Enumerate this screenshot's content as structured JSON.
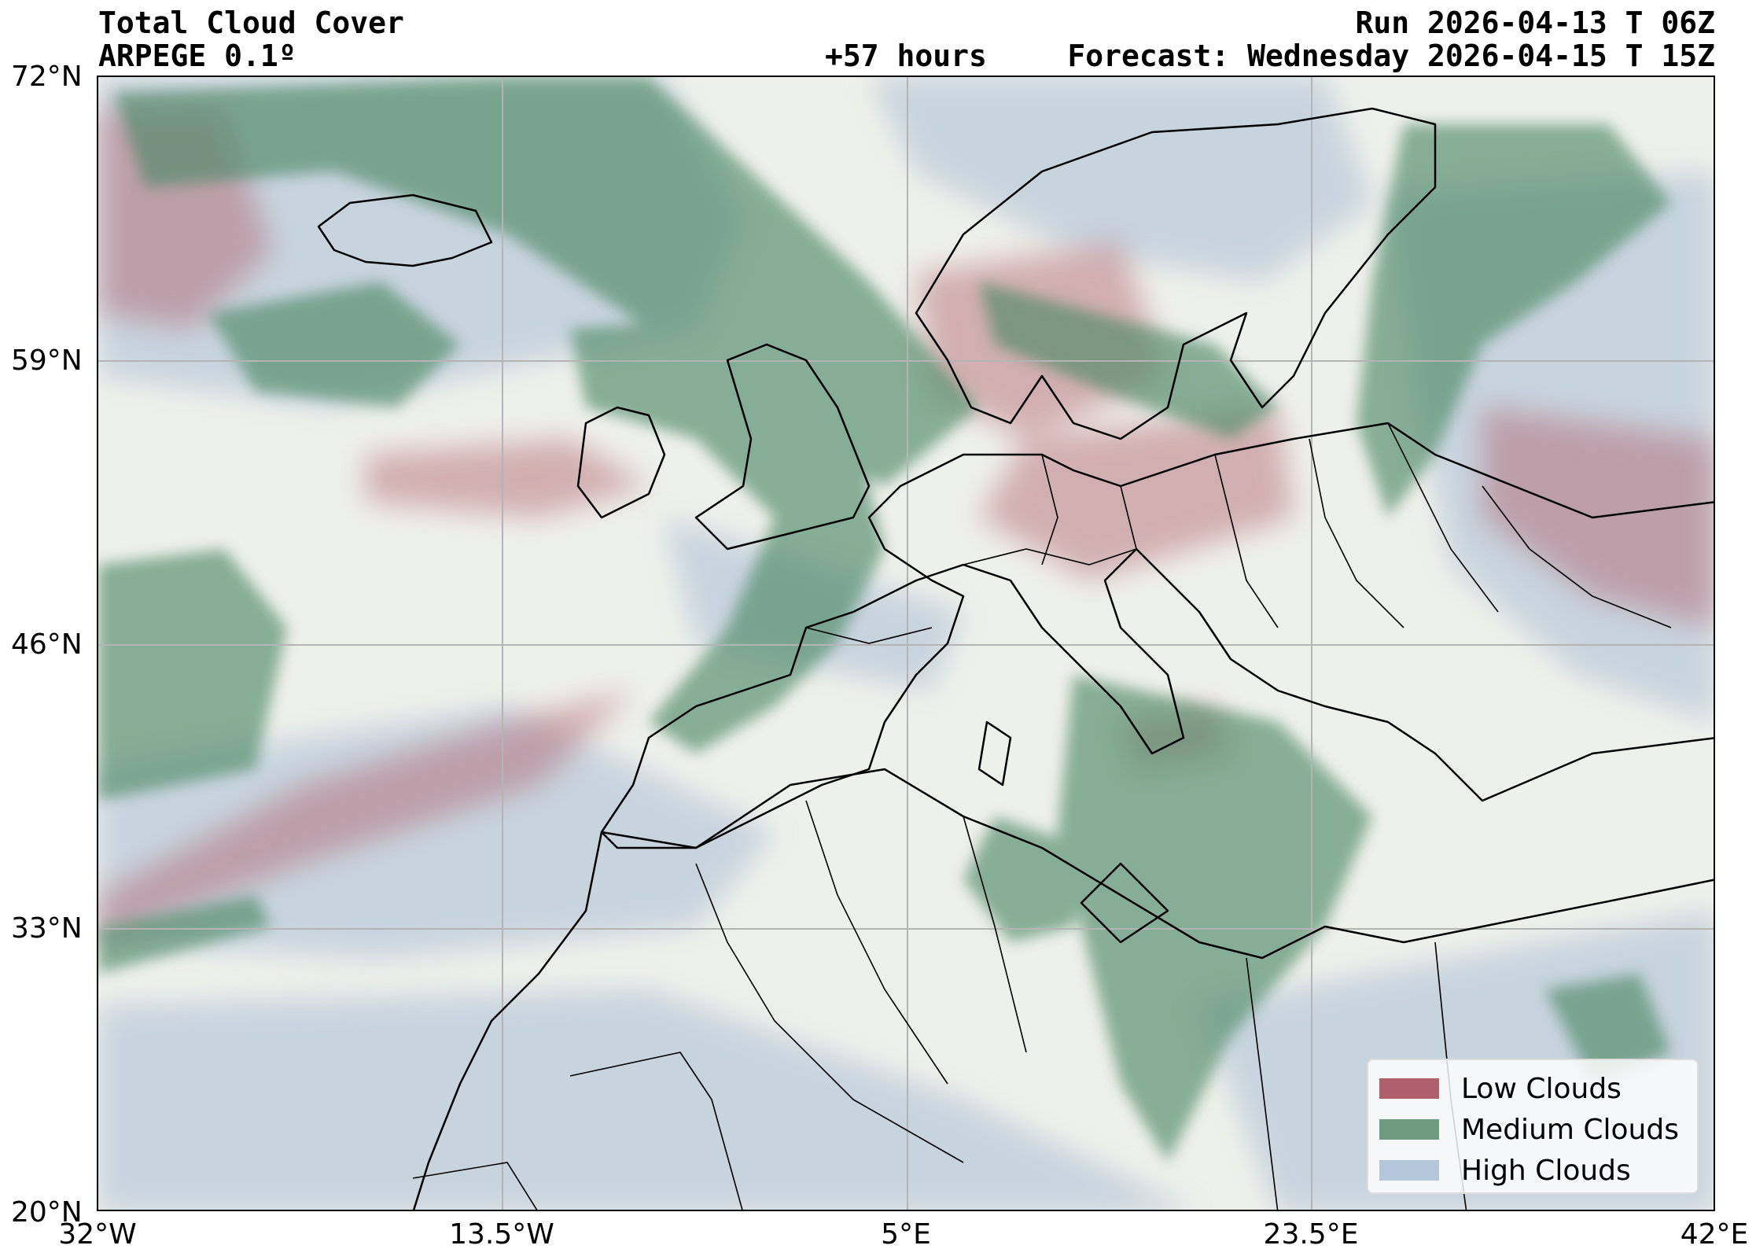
{
  "header": {
    "title": "Total Cloud Cover",
    "model": "ARPEGE 0.1º",
    "run": "Run 2026-04-13 T 06Z",
    "lead_time": "+57 hours",
    "forecast": "Forecast: Wednesday 2026-04-15 T 15Z"
  },
  "map": {
    "extent": {
      "lon_min": -32,
      "lon_max": 42,
      "lat_min": 20,
      "lat_max": 72
    },
    "latitude_labels": [
      "72°N",
      "59°N",
      "46°N",
      "33°N",
      "20°N"
    ],
    "longitude_labels": [
      "32°W",
      "13.5°W",
      "5°E",
      "23.5°E",
      "42°E"
    ],
    "grid": true,
    "colors": {
      "background": "#eef0ea",
      "low_clouds": "#b0606a",
      "medium_clouds": "#4f8a68",
      "high_clouds": "#a9bcd4",
      "coastline": "#000000"
    }
  },
  "legend": {
    "placement": "bottom-right",
    "items": [
      {
        "label": "Low Clouds",
        "color": "#b0606a"
      },
      {
        "label": "Medium Clouds",
        "color": "#6e9b80"
      },
      {
        "label": "High Clouds",
        "color": "#b6c6db"
      }
    ]
  }
}
